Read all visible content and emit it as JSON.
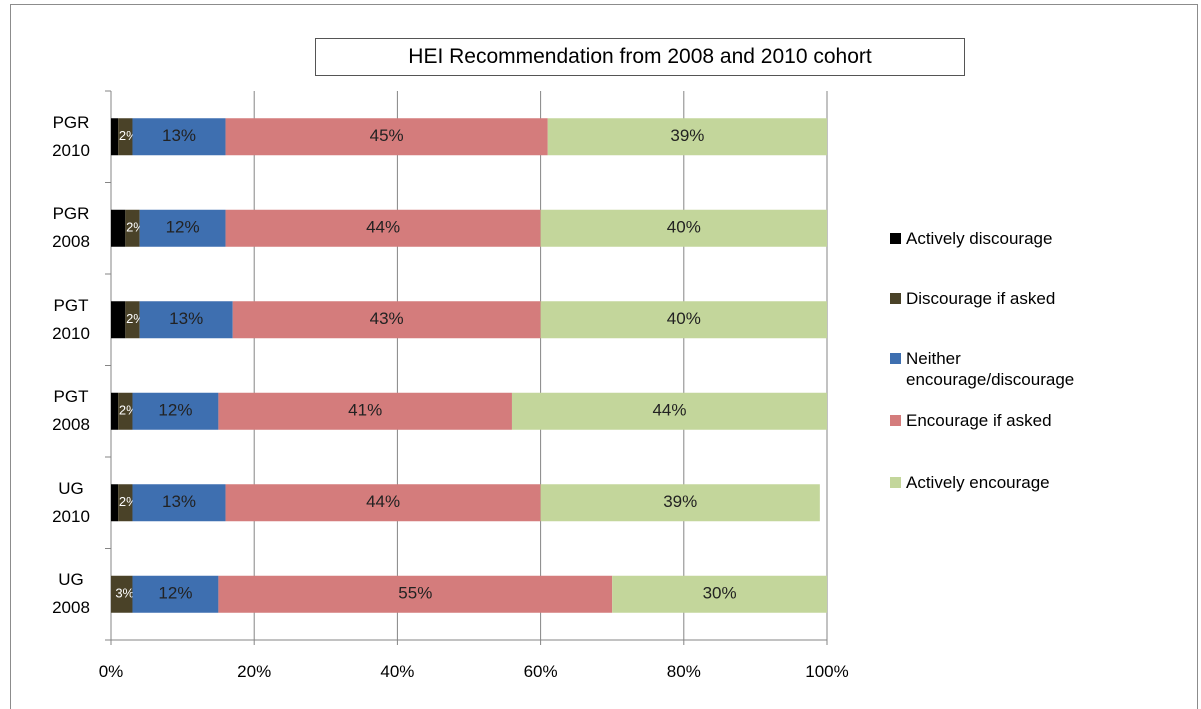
{
  "chart_data": {
    "type": "stacked_bar_horizontal",
    "title": "HEI Recommendation from 2008 and 2010 cohort",
    "categories": [
      "PGR 2010",
      "PGR 2008",
      "PGT 2010",
      "PGT 2008",
      "UG 2010",
      "UG 2008"
    ],
    "series": [
      {
        "name": "Actively discourage",
        "color": "#000000",
        "values": [
          1,
          2,
          2,
          1,
          1,
          0
        ]
      },
      {
        "name": "Discourage if asked",
        "color": "#4a4228",
        "values": [
          2,
          2,
          2,
          2,
          2,
          3
        ],
        "value_labels": [
          "2%",
          "2%",
          "2%",
          "2%",
          "2%",
          "3%"
        ]
      },
      {
        "name": "Neither encourage/discourage",
        "color": "#3e6fb0",
        "values": [
          13,
          12,
          13,
          12,
          13,
          12
        ],
        "value_labels": [
          "13%",
          "12%",
          "13%",
          "12%",
          "13%",
          "12%"
        ]
      },
      {
        "name": "Encourage if asked",
        "color": "#d47c7c",
        "values": [
          45,
          44,
          43,
          41,
          44,
          55
        ],
        "value_labels": [
          "45%",
          "44%",
          "43%",
          "41%",
          "44%",
          "55%"
        ]
      },
      {
        "name": "Actively encourage",
        "color": "#c3d69b",
        "values": [
          39,
          40,
          40,
          44,
          39,
          30
        ],
        "value_labels": [
          "39%",
          "40%",
          "40%",
          "44%",
          "39%",
          "30%"
        ]
      }
    ],
    "xlim": [
      0,
      100
    ],
    "xticks": [
      {
        "value": 0,
        "label": "0%"
      },
      {
        "value": 20,
        "label": "20%"
      },
      {
        "value": 40,
        "label": "40%"
      },
      {
        "value": 60,
        "label": "60%"
      },
      {
        "value": 80,
        "label": "80%"
      },
      {
        "value": 100,
        "label": "100%"
      }
    ],
    "grid": true,
    "legend": "right"
  }
}
